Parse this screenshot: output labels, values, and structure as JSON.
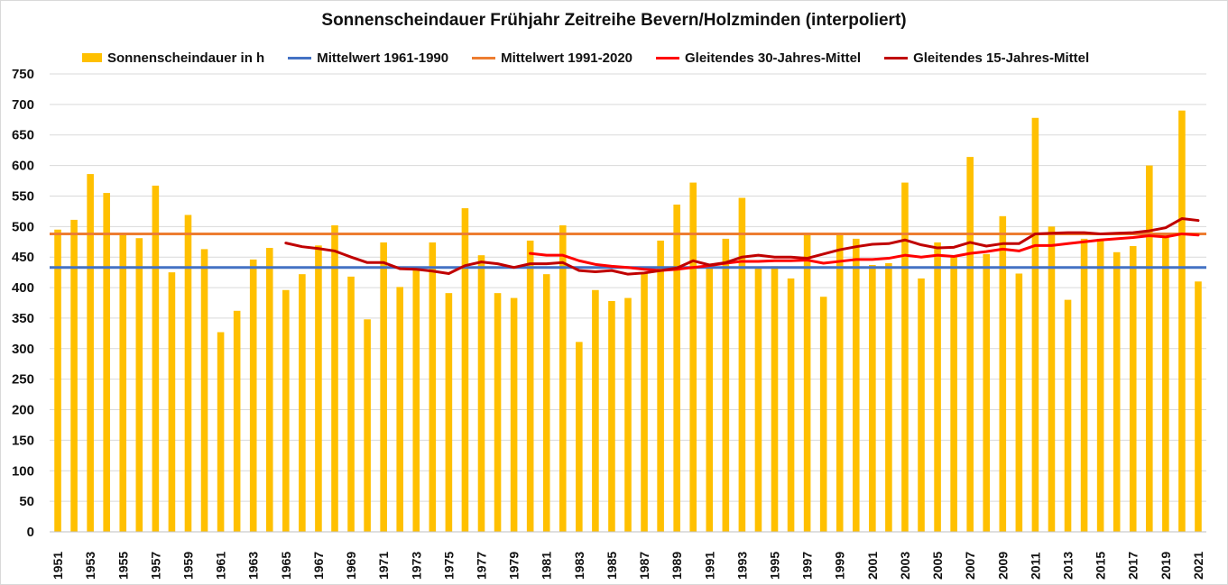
{
  "chart_data": {
    "type": "bar",
    "title": "Sonnenscheindauer Frühjahr Zeitreihe Bevern/Holzminden (interpoliert)",
    "xlabel": "",
    "ylabel": "",
    "ylim": [
      0,
      750
    ],
    "yticks": [
      0,
      50,
      100,
      150,
      200,
      250,
      300,
      350,
      400,
      450,
      500,
      550,
      600,
      650,
      700,
      750
    ],
    "grid": true,
    "legend_position": "top",
    "x": [
      1951,
      1952,
      1953,
      1954,
      1955,
      1956,
      1957,
      1958,
      1959,
      1960,
      1961,
      1962,
      1963,
      1964,
      1965,
      1966,
      1967,
      1968,
      1969,
      1970,
      1971,
      1972,
      1973,
      1974,
      1975,
      1976,
      1977,
      1978,
      1979,
      1980,
      1981,
      1982,
      1983,
      1984,
      1985,
      1986,
      1987,
      1988,
      1989,
      1990,
      1991,
      1992,
      1993,
      1994,
      1995,
      1996,
      1997,
      1998,
      1999,
      2000,
      2001,
      2002,
      2003,
      2004,
      2005,
      2006,
      2007,
      2008,
      2009,
      2010,
      2011,
      2012,
      2013,
      2014,
      2015,
      2016,
      2017,
      2018,
      2019,
      2020,
      2021
    ],
    "xtick_labels": [
      "1951",
      "1953",
      "1955",
      "1957",
      "1959",
      "1961",
      "1963",
      "1965",
      "1967",
      "1969",
      "1971",
      "1973",
      "1975",
      "1977",
      "1979",
      "1981",
      "1983",
      "1985",
      "1987",
      "1989",
      "1991",
      "1993",
      "1995",
      "1997",
      "1999",
      "2001",
      "2003",
      "2005",
      "2007",
      "2009",
      "2011",
      "2013",
      "2015",
      "2017",
      "2019",
      "2021"
    ],
    "series": [
      {
        "name": "Sonnenscheindauer in h",
        "kind": "bar",
        "color": "#FFC000",
        "values": [
          495,
          511,
          586,
          555,
          488,
          481,
          567,
          425,
          519,
          463,
          327,
          362,
          446,
          465,
          396,
          422,
          469,
          502,
          418,
          348,
          474,
          401,
          430,
          474,
          391,
          530,
          453,
          391,
          383,
          477,
          422,
          502,
          311,
          396,
          378,
          383,
          424,
          477,
          536,
          572,
          433,
          480,
          547,
          433,
          435,
          415,
          490,
          385,
          490,
          480,
          437,
          440,
          572,
          415,
          474,
          451,
          614,
          455,
          517,
          423,
          678,
          500,
          380,
          480,
          480,
          458,
          468,
          600,
          490,
          690,
          410
        ]
      },
      {
        "name": "Mittelwert 1961-1990",
        "kind": "hline",
        "color": "#4472C4",
        "value": 433
      },
      {
        "name": "Mittelwert 1991-2020",
        "kind": "hline",
        "color": "#ED7D31",
        "value": 488
      },
      {
        "name": "Gleitendes 30-Jahres-Mittel",
        "kind": "line",
        "color": "#FF0000",
        "x": [
          1980,
          1981,
          1982,
          1983,
          1984,
          1985,
          1986,
          1987,
          1988,
          1989,
          1990,
          1991,
          1992,
          1993,
          1994,
          1995,
          1996,
          1997,
          1998,
          1999,
          2000,
          2001,
          2002,
          2003,
          2004,
          2005,
          2006,
          2007,
          2008,
          2009,
          2010,
          2011,
          2012,
          2013,
          2014,
          2015,
          2016,
          2017,
          2018,
          2019,
          2020,
          2021
        ],
        "values": [
          456,
          453,
          453,
          444,
          438,
          435,
          433,
          430,
          428,
          430,
          433,
          436,
          440,
          443,
          443,
          444,
          444,
          445,
          440,
          443,
          446,
          446,
          448,
          453,
          450,
          453,
          451,
          456,
          459,
          463,
          460,
          469,
          469,
          472,
          475,
          478,
          480,
          482,
          485,
          483,
          488,
          486
        ]
      },
      {
        "name": "Gleitendes 15-Jahres-Mittel",
        "kind": "line",
        "color": "#C00000",
        "x": [
          1965,
          1966,
          1967,
          1968,
          1969,
          1970,
          1971,
          1972,
          1973,
          1974,
          1975,
          1976,
          1977,
          1978,
          1979,
          1980,
          1981,
          1982,
          1983,
          1984,
          1985,
          1986,
          1987,
          1988,
          1989,
          1990,
          1991,
          1992,
          1993,
          1994,
          1995,
          1996,
          1997,
          1998,
          1999,
          2000,
          2001,
          2002,
          2003,
          2004,
          2005,
          2006,
          2007,
          2008,
          2009,
          2010,
          2011,
          2012,
          2013,
          2014,
          2015,
          2016,
          2017,
          2018,
          2019,
          2020,
          2021
        ],
        "values": [
          473,
          467,
          464,
          460,
          450,
          441,
          441,
          431,
          430,
          427,
          423,
          436,
          442,
          439,
          433,
          439,
          439,
          441,
          428,
          426,
          428,
          422,
          424,
          428,
          432,
          444,
          437,
          441,
          450,
          453,
          450,
          450,
          448,
          455,
          462,
          467,
          471,
          472,
          478,
          470,
          465,
          466,
          474,
          468,
          472,
          472,
          488,
          489,
          490,
          490,
          488,
          489,
          490,
          493,
          498,
          513,
          510
        ]
      }
    ]
  }
}
